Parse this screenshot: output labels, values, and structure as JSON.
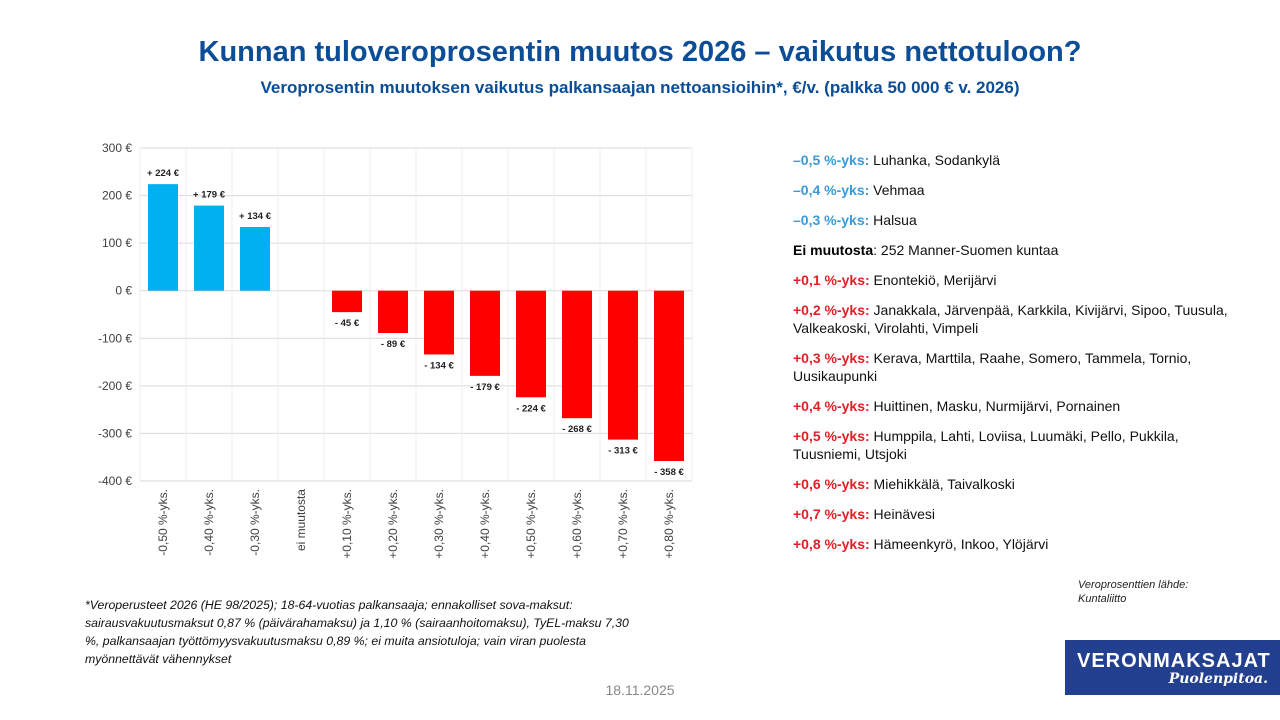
{
  "header": {
    "title": "Kunnan tuloveroprosentin muutos 2026 – vaikutus nettotuloon?",
    "subtitle": "Veroprosentin muutoksen vaikutus palkansaajan nettoansioihin*, €/v. (palkka 50 000 € v. 2026)"
  },
  "chart_data": {
    "type": "bar",
    "categories": [
      "-0,50 %-yks.",
      "-0,40 %-yks.",
      "-0,30 %-yks.",
      "ei muutosta",
      "+0,10 %-yks.",
      "+0,20 %-yks.",
      "+0,30 %-yks.",
      "+0,40 %-yks.",
      "+0,50 %-yks.",
      "+0,60 %-yks.",
      "+0,70 %-yks.",
      "+0,80 %-yks."
    ],
    "values": [
      224,
      179,
      134,
      0,
      -45,
      -89,
      -134,
      -179,
      -224,
      -268,
      -313,
      -358
    ],
    "data_labels": [
      "+ 224 €",
      "+ 179 €",
      "+ 134 €",
      "",
      "- 45 €",
      "- 89 €",
      "- 134 €",
      "- 179 €",
      "- 224 €",
      "- 268 €",
      "- 313 €",
      "- 358 €"
    ],
    "yticks": [
      300,
      200,
      100,
      0,
      -100,
      -200,
      -300,
      -400
    ],
    "ytick_labels": [
      "300 €",
      "200 €",
      "100 €",
      "0 €",
      "-100 €",
      "-200 €",
      "-300 €",
      "-400 €"
    ],
    "ylim": [
      -400,
      300
    ],
    "grid": true,
    "colors": {
      "positive": "#00b0f0",
      "negative": "#ff0000"
    }
  },
  "legend": [
    {
      "label": "–0,5 %-yks:",
      "text": " Luhanka, Sodankylä",
      "color": "#3a9ad9"
    },
    {
      "label": "–0,4 %-yks:",
      "text": " Vehmaa",
      "color": "#3a9ad9"
    },
    {
      "label": "–0,3 %-yks:",
      "text": " Halsua",
      "color": "#3a9ad9"
    },
    {
      "label": "Ei muutosta",
      "text": ": 252 Manner-Suomen kuntaa",
      "color": "#000000"
    },
    {
      "label": "+0,1 %-yks:",
      "text": " Enontekiö, Merijärvi",
      "color": "#e31e24"
    },
    {
      "label": "+0,2 %-yks:",
      "text": " Janakkala, Järvenpää, Karkkila, Kivijärvi, Sipoo, Tuusula, Valkeakoski, Virolahti, Vimpeli",
      "color": "#e31e24"
    },
    {
      "label": "+0,3 %-yks:",
      "text": " Kerava, Marttila, Raahe, Somero, Tammela, Tornio, Uusikaupunki",
      "color": "#e31e24"
    },
    {
      "label": "+0,4 %-yks:",
      "text": " Huittinen, Masku, Nurmijärvi, Pornainen",
      "color": "#e31e24"
    },
    {
      "label": "+0,5 %-yks:",
      "text": " Humppila, Lahti, Loviisa, Luumäki, Pello, Pukkila, Tuusniemi, Utsjoki",
      "color": "#e31e24"
    },
    {
      "label": "+0,6 %-yks:",
      "text": " Miehikkälä, Taivalkoski",
      "color": "#e31e24"
    },
    {
      "label": "+0,7 %-yks:",
      "text": " Heinävesi",
      "color": "#e31e24"
    },
    {
      "label": "+0,8 %-yks:",
      "text": " Hämeenkyrö, Inkoo, Ylöjärvi",
      "color": "#e31e24"
    }
  ],
  "source": {
    "line1": "Veroprosenttien lähde:",
    "line2": "Kuntaliitto"
  },
  "footnote": "*Veroperusteet 2026 (HE 98/2025); 18-64-vuotias palkansaaja; ennakolliset sova-maksut: sairausvakuutusmaksut 0,87 % (päivärahamaksu) ja 1,10 % (sairaanhoitomaksu), TyEL-maksu 7,30 %, palkansaajan työttömyysvakuutusmaksu 0,89 %; ei muita ansiotuloja; vain viran puolesta myönnettävät vähennykset",
  "date": "18.11.2025",
  "logo": {
    "line1": "VERONMAKSAJAT",
    "line2": "Puolenpitoa."
  }
}
